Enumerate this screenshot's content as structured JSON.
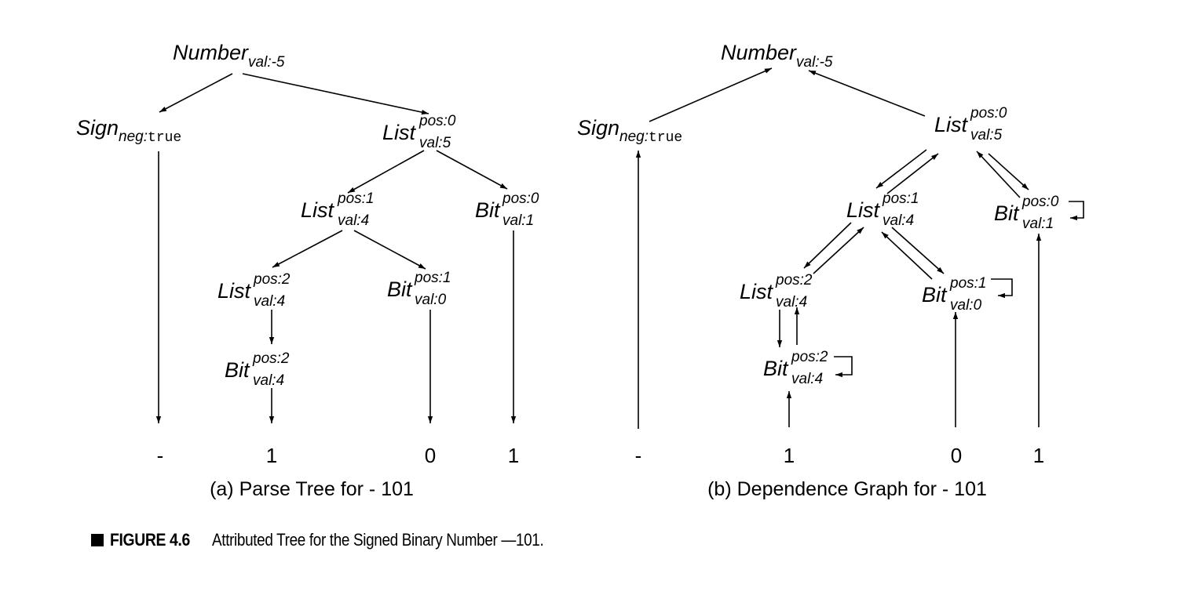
{
  "left": {
    "caption": "(a) Parse Tree for - 101",
    "nodes": {
      "number": {
        "name": "Number",
        "sub": "val:-5"
      },
      "sign": {
        "name": "Sign",
        "sub_key": "neg:",
        "sub_val": "true"
      },
      "list0": {
        "name": "List",
        "sup": "pos:0",
        "sub": "val:5"
      },
      "list1": {
        "name": "List",
        "sup": "pos:1",
        "sub": "val:4"
      },
      "bit0": {
        "name": "Bit",
        "sup": "pos:0",
        "sub": "val:1"
      },
      "list2": {
        "name": "List",
        "sup": "pos:2",
        "sub": "val:4"
      },
      "bit1": {
        "name": "Bit",
        "sup": "pos:1",
        "sub": "val:0"
      },
      "bit2": {
        "name": "Bit",
        "sup": "pos:2",
        "sub": "val:4"
      }
    },
    "terminals": [
      "-",
      "1",
      "0",
      "1"
    ]
  },
  "right": {
    "caption": "(b) Dependence Graph for - 101",
    "nodes": {
      "number": {
        "name": "Number",
        "sub": "val:-5"
      },
      "sign": {
        "name": "Sign",
        "sub_key": "neg:",
        "sub_val": "true"
      },
      "list0": {
        "name": "List",
        "sup": "pos:0",
        "sub": "val:5"
      },
      "list1": {
        "name": "List",
        "sup": "pos:1",
        "sub": "val:4"
      },
      "bit0": {
        "name": "Bit",
        "sup": "pos:0",
        "sub": "val:1"
      },
      "list2": {
        "name": "List",
        "sup": "pos:2",
        "sub": "val:4"
      },
      "bit1": {
        "name": "Bit",
        "sup": "pos:1",
        "sub": "val:0"
      },
      "bit2": {
        "name": "Bit",
        "sup": "pos:2",
        "sub": "val:4"
      }
    },
    "terminals": [
      "-",
      "1",
      "0",
      "1"
    ]
  },
  "figure": {
    "number": "FIGURE 4.6",
    "text": "Attributed Tree for the Signed Binary Number —101."
  }
}
